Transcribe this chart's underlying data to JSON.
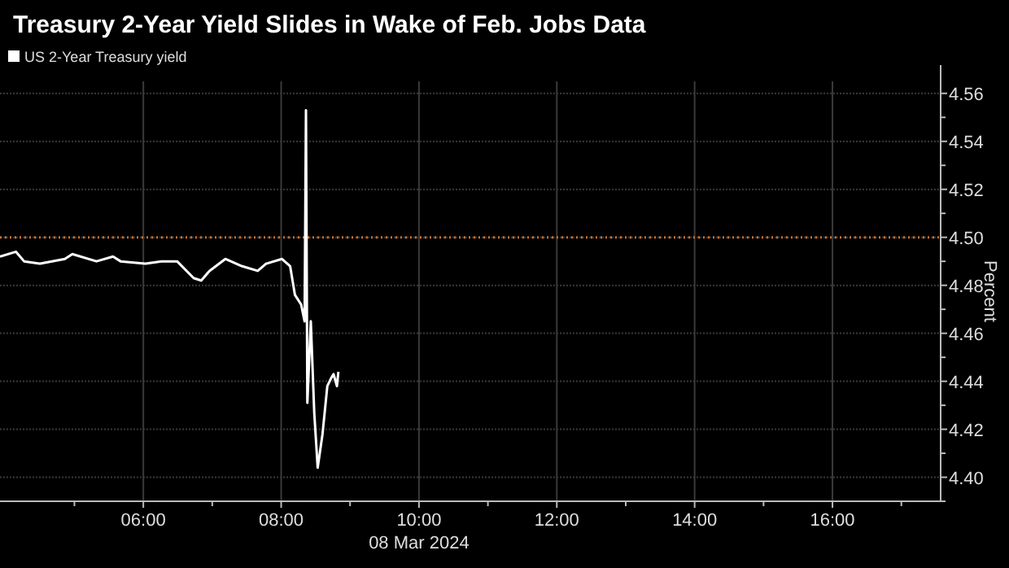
{
  "chart_data": {
    "type": "line",
    "title": "Treasury 2-Year Yield Slides in Wake of Feb. Jobs Data",
    "xlabel": "08 Mar 2024",
    "ylabel": "Percent",
    "x": [
      3.92,
      4.15,
      4.27,
      4.5,
      4.86,
      4.97,
      5.32,
      5.56,
      5.67,
      6.03,
      6.26,
      6.49,
      6.73,
      6.84,
      6.96,
      7.19,
      7.43,
      7.66,
      7.78,
      8.01,
      8.13,
      8.2,
      8.29,
      8.34,
      8.36,
      8.38,
      8.43,
      8.48,
      8.53,
      8.6,
      8.67,
      8.72,
      8.76,
      8.81,
      8.83
    ],
    "series": [
      {
        "name": "US 2-Year Treasury yield",
        "color": "#ffffff",
        "values": [
          4.492,
          4.494,
          4.49,
          4.489,
          4.491,
          4.493,
          4.49,
          4.492,
          4.49,
          4.489,
          4.49,
          4.49,
          4.483,
          4.482,
          4.486,
          4.491,
          4.488,
          4.486,
          4.489,
          4.491,
          4.488,
          4.476,
          4.472,
          4.465,
          4.553,
          4.431,
          4.465,
          4.427,
          4.404,
          4.418,
          4.438,
          4.441,
          4.443,
          4.438,
          4.444
        ]
      }
    ],
    "xlim": [
      3.92,
      17.57
    ],
    "ylim": [
      4.39,
      4.565
    ],
    "xticks": [
      {
        "value": 6,
        "label": "06:00"
      },
      {
        "value": 8,
        "label": "08:00"
      },
      {
        "value": 10,
        "label": "10:00"
      },
      {
        "value": 12,
        "label": "12:00"
      },
      {
        "value": 14,
        "label": "14:00"
      },
      {
        "value": 16,
        "label": "16:00"
      }
    ],
    "yticks": [
      {
        "value": 4.4,
        "label": "4.40"
      },
      {
        "value": 4.42,
        "label": "4.42"
      },
      {
        "value": 4.44,
        "label": "4.44"
      },
      {
        "value": 4.46,
        "label": "4.46"
      },
      {
        "value": 4.48,
        "label": "4.48"
      },
      {
        "value": 4.5,
        "label": "4.50"
      },
      {
        "value": 4.52,
        "label": "4.52"
      },
      {
        "value": 4.54,
        "label": "4.54"
      },
      {
        "value": 4.56,
        "label": "4.56"
      }
    ],
    "ref_lines": [
      {
        "axis": "y",
        "value": 4.5,
        "color": "#c8702a",
        "line_style": "dotted"
      }
    ],
    "grid": true,
    "legend": "top left"
  }
}
